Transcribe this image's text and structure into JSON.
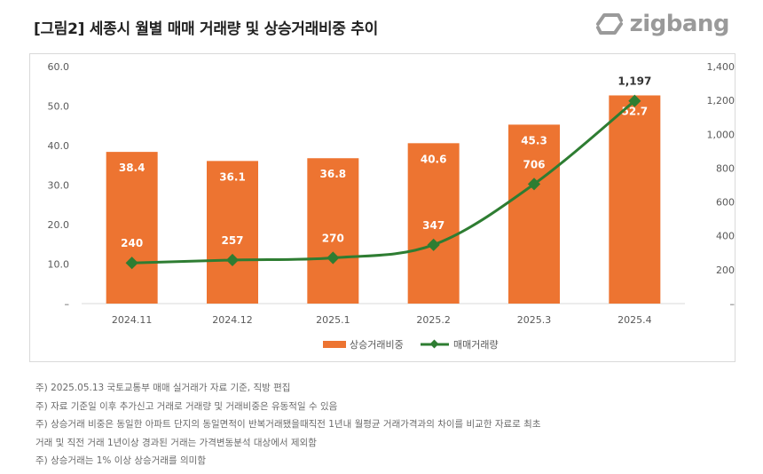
{
  "header": {
    "title": "[그림2] 세종시 월별 매매 거래량 및 상승거래비중 추이",
    "logo_text": "zigbang"
  },
  "chart_data": {
    "type": "bar+line",
    "categories": [
      "2024.11",
      "2024.12",
      "2025.1",
      "2025.2",
      "2025.3",
      "2025.4"
    ],
    "series": [
      {
        "name": "상승거래비중",
        "kind": "bar",
        "axis": "left",
        "color": "#ED7431",
        "values": [
          38.4,
          36.1,
          36.8,
          40.6,
          45.3,
          52.7
        ],
        "labels": [
          "38.4",
          "36.1",
          "36.8",
          "40.6",
          "45.3",
          "52.7"
        ]
      },
      {
        "name": "매매거래량",
        "kind": "line",
        "axis": "right",
        "color": "#2E7D32",
        "values": [
          240,
          257,
          270,
          347,
          706,
          1197
        ],
        "labels": [
          "240",
          "257",
          "270",
          "347",
          "706",
          "1,197"
        ]
      }
    ],
    "y_left": {
      "min": 0,
      "max": 60,
      "ticks": [
        "–",
        "10.0",
        "20.0",
        "30.0",
        "40.0",
        "50.0",
        "60.0"
      ]
    },
    "y_right": {
      "min": 0,
      "max": 1400,
      "ticks": [
        "–",
        "200",
        "400",
        "600",
        "800",
        "1,000",
        "1,200",
        "1,400"
      ]
    },
    "legend_position": "bottom",
    "grid": false
  },
  "notes": [
    "주) 2025.05.13 국토교통부 매매 실거래가 자료 기준, 직방 편집",
    "주) 자료 기준일 이후 추가신고 거래로 거래량 및 거래비중은 유동적일 수 있음",
    "주) 상승거래 비중은 동일한 아파트 단지의 동일면적이 반복거래됐을때직전 1년내 월평균 거래가격과의 차이를 비교한 자료로 최초",
    "거래 및 직전 거래 1년이상 경과된 거래는 가격변동분석 대상에서 제외함",
    "주) 상승거래는 1% 이상 상승거래를 의미함"
  ]
}
